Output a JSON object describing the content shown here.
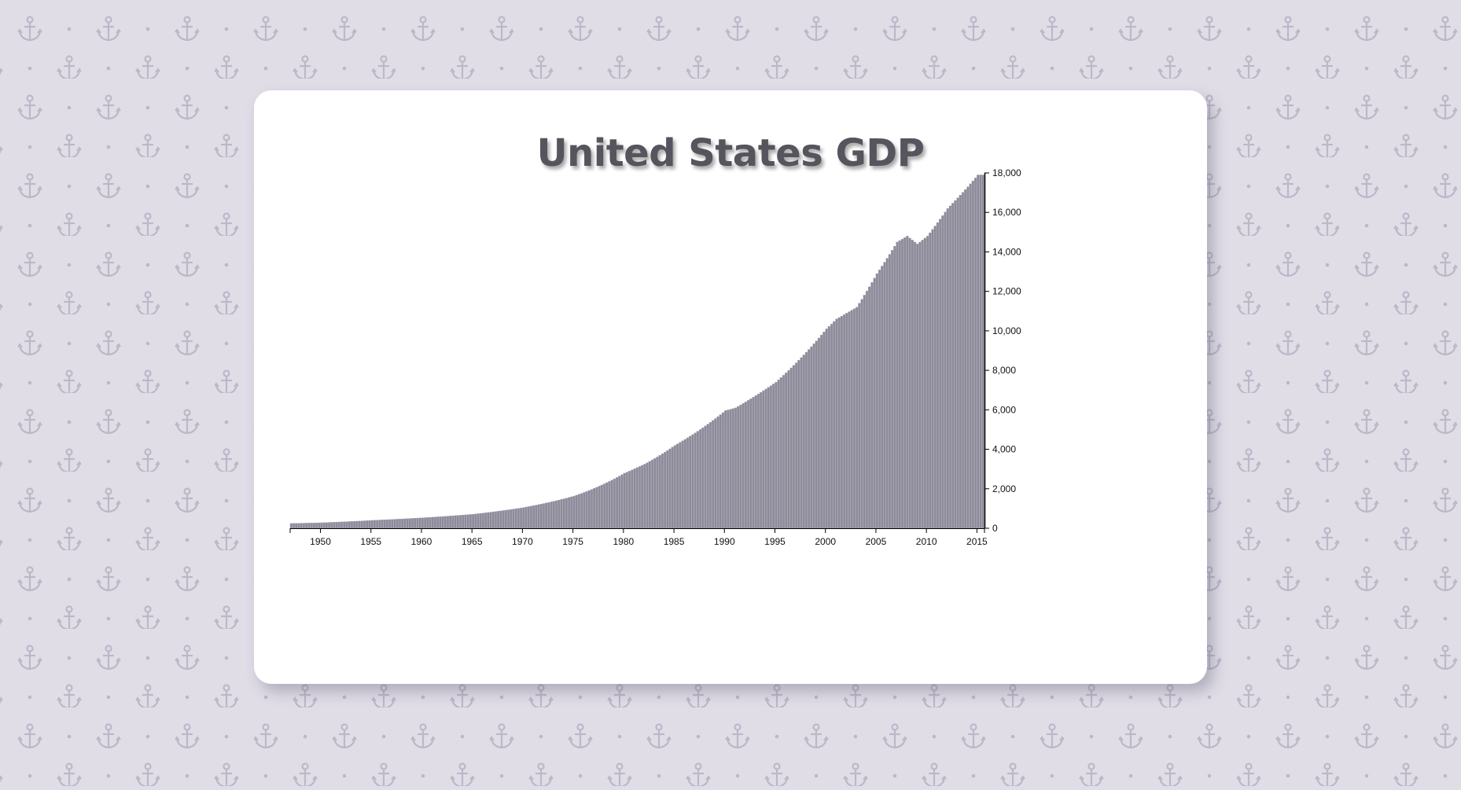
{
  "colors": {
    "background": "#e0dde7",
    "pattern": "#bdb7c8",
    "card": "#ffffff",
    "bar": "#8d8a99",
    "bar_edge": "#a9a6b3",
    "title": "#56545c",
    "axis": "#000000"
  },
  "background_icon": "anchor-icon",
  "chart_data": {
    "type": "bar",
    "title": "United States GDP",
    "xlabel": "",
    "ylabel": "",
    "x_start": 1947,
    "x_end": 2015.75,
    "x_ticks": [
      "1950",
      "1955",
      "1960",
      "1965",
      "1970",
      "1975",
      "1980",
      "1985",
      "1990",
      "1995",
      "2000",
      "2005",
      "2010",
      "2015"
    ],
    "y_ticks": [
      "0",
      "2,000",
      "4,000",
      "6,000",
      "8,000",
      "10,000",
      "12,000",
      "14,000",
      "16,000",
      "18,000"
    ],
    "ylim": [
      0,
      18000
    ],
    "grid": false,
    "legend": "none",
    "frequency": "quarterly",
    "anchor_points": [
      [
        1947,
        243
      ],
      [
        1950,
        280
      ],
      [
        1955,
        400
      ],
      [
        1960,
        530
      ],
      [
        1965,
        710
      ],
      [
        1970,
        1050
      ],
      [
        1975,
        1630
      ],
      [
        1980,
        2790
      ],
      [
        1982,
        3250
      ],
      [
        1985,
        4200
      ],
      [
        1990,
        5960
      ],
      [
        1991,
        6100
      ],
      [
        1995,
        7400
      ],
      [
        2000,
        10100
      ],
      [
        2001,
        10600
      ],
      [
        2003,
        11200
      ],
      [
        2005,
        12900
      ],
      [
        2007,
        14500
      ],
      [
        2008,
        14800
      ],
      [
        2009,
        14400
      ],
      [
        2010,
        14800
      ],
      [
        2012,
        16200
      ],
      [
        2014,
        17300
      ],
      [
        2015,
        17900
      ]
    ]
  }
}
